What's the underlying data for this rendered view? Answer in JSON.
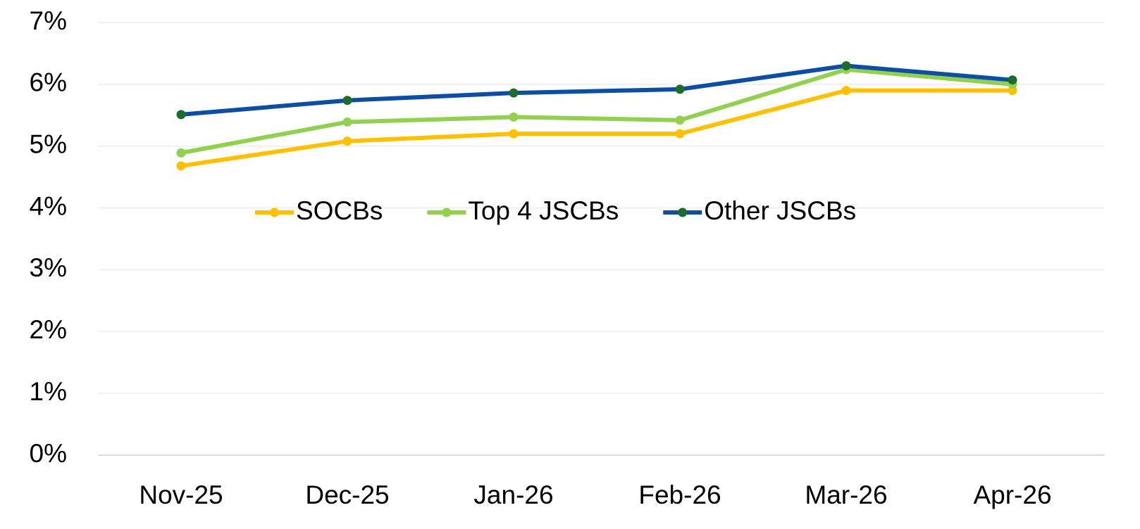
{
  "chart_data": {
    "type": "line",
    "categories": [
      "Nov-25",
      "Dec-25",
      "Jan-26",
      "Feb-26",
      "Mar-26",
      "Apr-26"
    ],
    "series": [
      {
        "name": "SOCBs",
        "color": "#ffc000",
        "marker_color": "#ffc000",
        "values": [
          4.68,
          5.08,
          5.2,
          5.2,
          5.9,
          5.9
        ]
      },
      {
        "name": "Top 4 JSCBs",
        "color": "#92d050",
        "marker_color": "#92d050",
        "values": [
          4.89,
          5.39,
          5.47,
          5.42,
          6.24,
          6.0
        ]
      },
      {
        "name": "Other JSCBs",
        "color": "#0b4ea2",
        "marker_color": "#1e6b2e",
        "values": [
          5.51,
          5.74,
          5.86,
          5.92,
          6.3,
          6.07
        ]
      }
    ],
    "ylim": [
      0,
      7
    ],
    "yticks": [
      {
        "value": 0,
        "label": "0%"
      },
      {
        "value": 1,
        "label": "1%"
      },
      {
        "value": 2,
        "label": "2%"
      },
      {
        "value": 3,
        "label": "3%"
      },
      {
        "value": 4,
        "label": "4%"
      },
      {
        "value": 5,
        "label": "5%"
      },
      {
        "value": 6,
        "label": "6%"
      },
      {
        "value": 7,
        "label": "7%"
      }
    ],
    "grid": true,
    "legend": "center"
  }
}
